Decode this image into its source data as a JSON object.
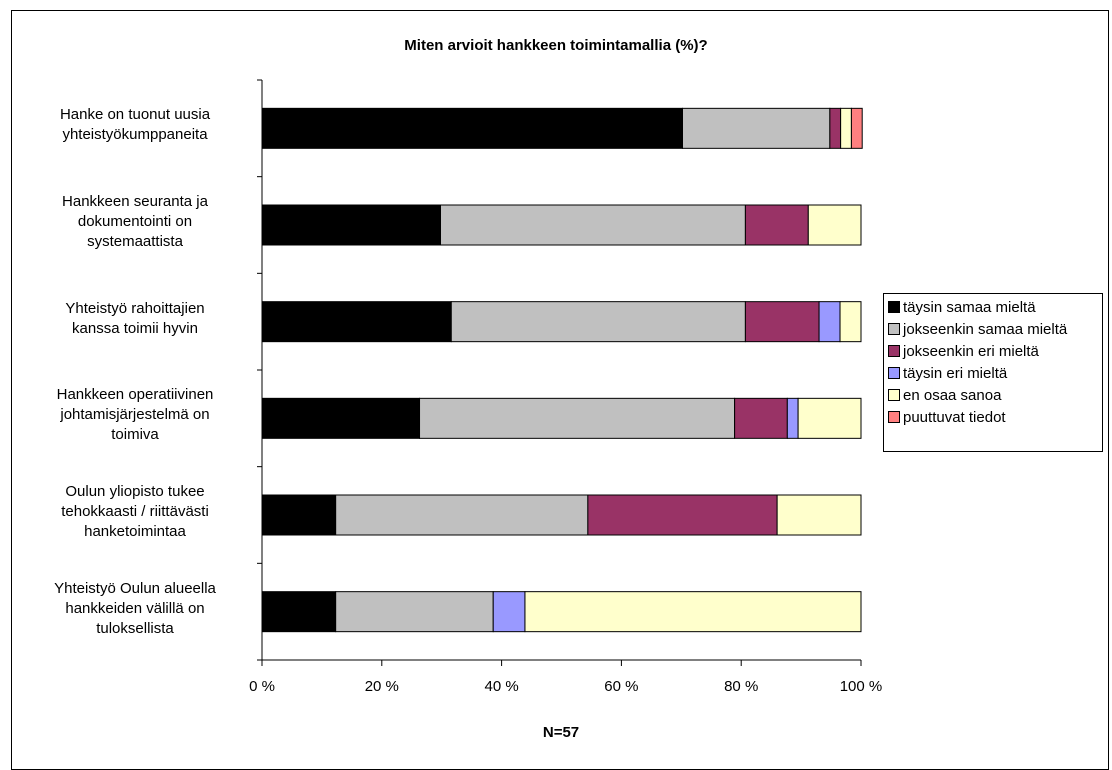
{
  "chart_data": {
    "type": "bar",
    "orientation": "horizontal",
    "stacked": true,
    "title": "Miten arvioit hankkeen toimintamallia (%)?",
    "footer": "N=57",
    "categories": [
      [
        "Hanke on tuonut uusia",
        "yhteistyökumppaneita"
      ],
      [
        "Hankkeen seuranta ja",
        "dokumentointi on",
        "systemaattista"
      ],
      [
        "Yhteistyö rahoittajien",
        "kanssa toimii hyvin"
      ],
      [
        "Hankkeen operatiivinen",
        "johtamisjärjestelmä on",
        "toimiva"
      ],
      [
        "Oulun yliopisto tukee",
        "tehokkaasti / riittävästi",
        "hanketoimintaa"
      ],
      [
        "Yhteistyö Oulun alueella",
        "hankkeiden välillä on",
        "tuloksellista"
      ]
    ],
    "xlim": [
      0,
      100
    ],
    "xticks": [
      0,
      20,
      40,
      60,
      80,
      100
    ],
    "xtick_labels": [
      "0 %",
      "20 %",
      "40 %",
      "60 %",
      "80 %",
      "100 %"
    ],
    "grid": false,
    "legend_position": "right",
    "series": [
      {
        "name": "täysin samaa mieltä",
        "color": "#000000",
        "values": [
          70.2,
          29.8,
          31.6,
          26.3,
          12.3,
          12.3
        ]
      },
      {
        "name": "jokseenkin samaa mieltä",
        "color": "#c0c0c0",
        "values": [
          24.6,
          50.9,
          49.1,
          52.6,
          42.1,
          26.3
        ]
      },
      {
        "name": "jokseenkin eri mieltä",
        "color": "#993366",
        "values": [
          1.8,
          10.5,
          12.3,
          8.8,
          31.6,
          0
        ]
      },
      {
        "name": "täysin eri mieltä",
        "color": "#9999ff",
        "values": [
          0,
          0,
          3.5,
          1.8,
          0,
          5.3
        ]
      },
      {
        "name": "en osaa sanoa",
        "color": "#ffffcc",
        "values": [
          1.8,
          8.8,
          3.5,
          10.5,
          14.0,
          56.1
        ]
      },
      {
        "name": "puuttuvat tiedot",
        "color": "#ff8080",
        "values": [
          1.8,
          0,
          0,
          0,
          0,
          0
        ]
      }
    ]
  }
}
